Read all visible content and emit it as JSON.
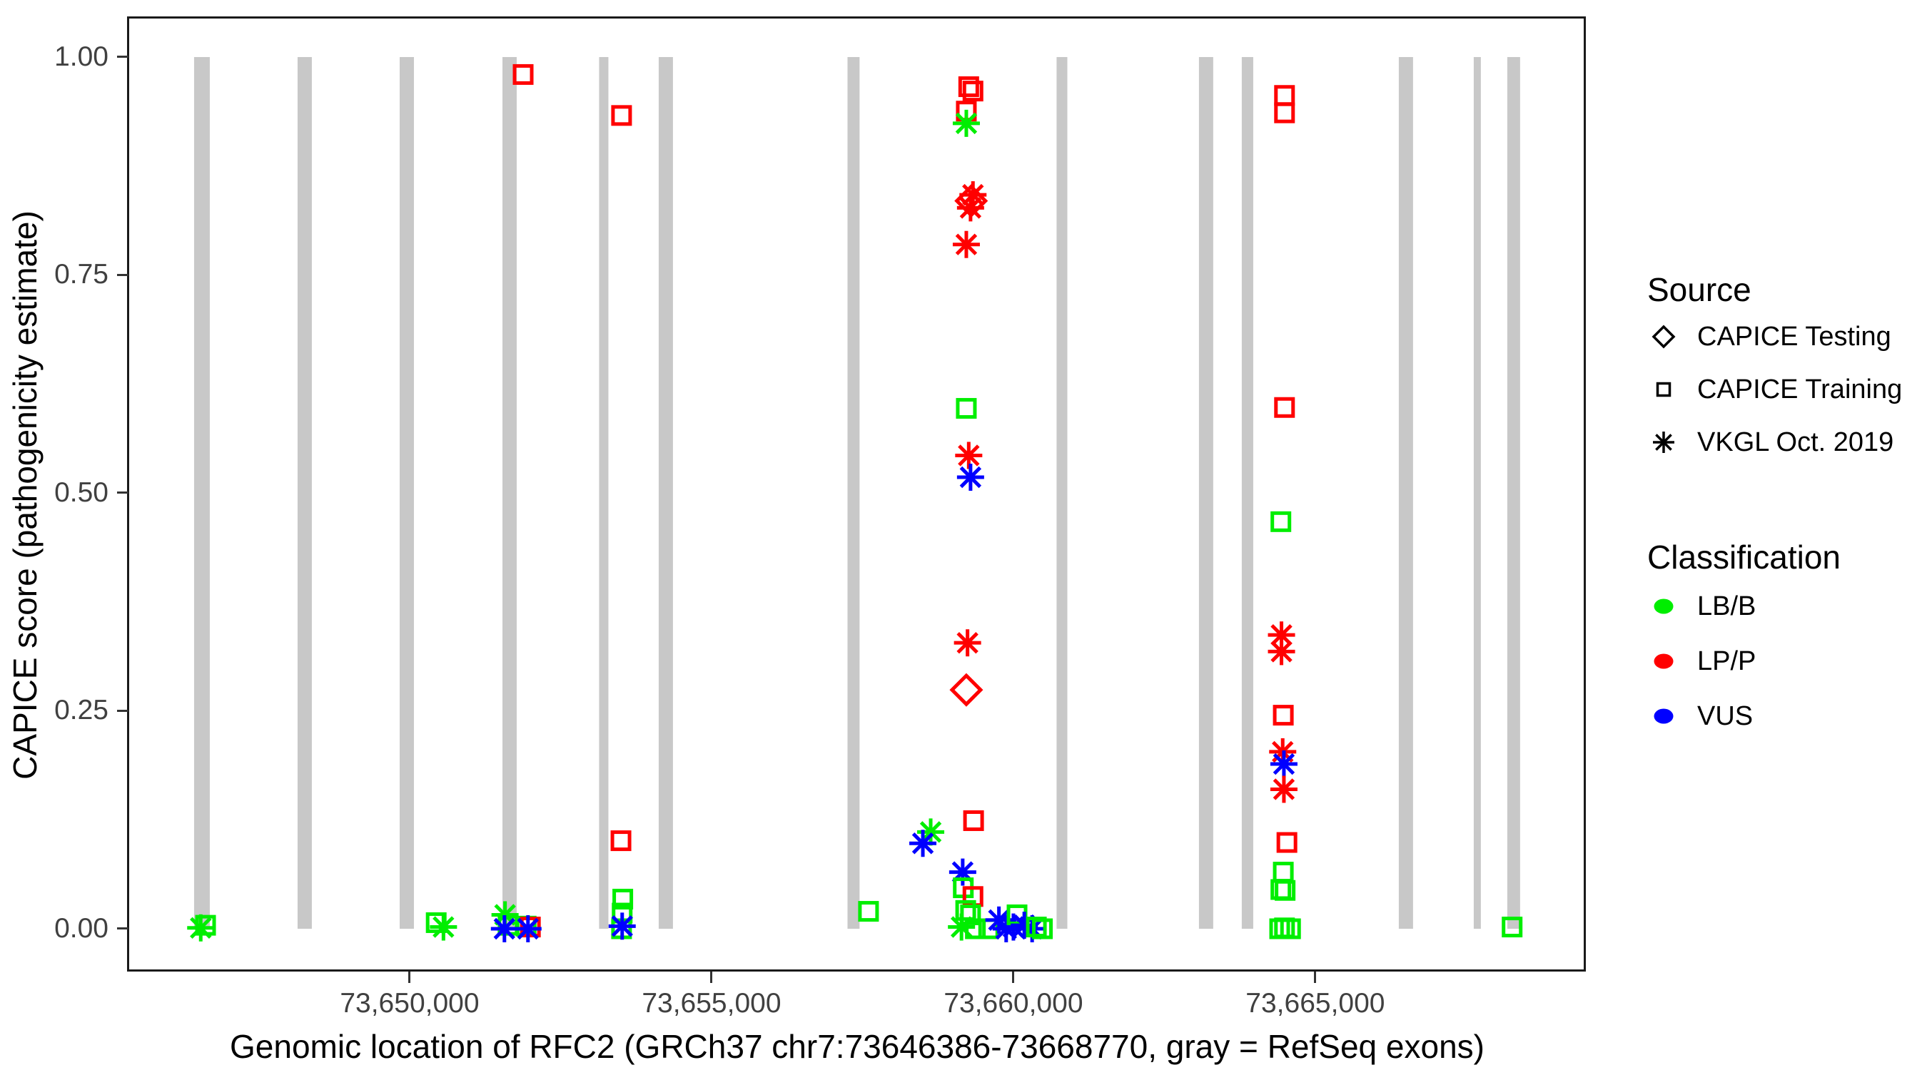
{
  "figure": {
    "x_axis_title": "Genomic location of RFC2 (GRCh37 chr7:73646386-73668770, gray = RefSeq exons)",
    "y_axis_title": "CAPICE score (pathogenicity estimate)"
  },
  "legend": {
    "source": {
      "title": "Source",
      "items": [
        {
          "shape": "diamond",
          "label": "CAPICE Testing"
        },
        {
          "shape": "square",
          "label": "CAPICE Training"
        },
        {
          "shape": "asterisk",
          "label": "VKGL Oct. 2019"
        }
      ]
    },
    "classification": {
      "title": "Classification",
      "items": [
        {
          "label": "LB/B",
          "color": "#00ee00"
        },
        {
          "label": "LP/P",
          "color": "#ff0000"
        },
        {
          "label": "VUS",
          "color": "#0000ff"
        }
      ]
    }
  },
  "colors": {
    "exon_gray": "#c8c8c8",
    "panel_border": "#1a1a1a",
    "tick_text": "#404040"
  },
  "chart_data": {
    "type": "scatter",
    "title": "",
    "xlabel": "Genomic location of RFC2 (GRCh37 chr7:73646386-73668770, gray = RefSeq exons)",
    "ylabel": "CAPICE score (pathogenicity estimate)",
    "grid": false,
    "legend_position": "right",
    "axes": {
      "x_range": [
        73645343,
        73669481
      ],
      "y_range": [
        -0.0491,
        1.045
      ],
      "x_ticks": [
        {
          "bp": 73650000,
          "label": "73,650,000"
        },
        {
          "bp": 73655000,
          "label": "73,655,000"
        },
        {
          "bp": 73660000,
          "label": "73,660,000"
        },
        {
          "bp": 73665000,
          "label": "73,665,000"
        }
      ],
      "y_ticks": [
        {
          "value": 0.0,
          "label": "0.00"
        },
        {
          "value": 0.25,
          "label": "0.25"
        },
        {
          "value": 0.5,
          "label": "0.50"
        },
        {
          "value": 0.75,
          "label": "0.75"
        },
        {
          "value": 1.0,
          "label": "1.00"
        }
      ]
    },
    "shape_by_source": {
      "CAPICE Testing": "diamond",
      "CAPICE Training": "square",
      "VKGL Oct. 2019": "asterisk"
    },
    "color_by_classification": {
      "LB/B": "#00ee00",
      "LP/P": "#ff0000",
      "VUS": "#0000ff"
    },
    "exons": [
      {
        "start": 73646430,
        "end": 73646690
      },
      {
        "start": 73648144,
        "end": 73648380
      },
      {
        "start": 73649835,
        "end": 73650071
      },
      {
        "start": 73651537,
        "end": 73651773
      },
      {
        "start": 73653138,
        "end": 73653292
      },
      {
        "start": 73654125,
        "end": 73654361
      },
      {
        "start": 73657252,
        "end": 73657452
      },
      {
        "start": 73660715,
        "end": 73660893
      },
      {
        "start": 73663073,
        "end": 73663309
      },
      {
        "start": 73663782,
        "end": 73663972
      },
      {
        "start": 73666383,
        "end": 73666619
      },
      {
        "start": 73667624,
        "end": 73667742
      },
      {
        "start": 73668180,
        "end": 73668392
      }
    ],
    "points": [
      {
        "bp": 73646540,
        "score": 0.001,
        "cls": "LB/B",
        "src": "VKGL Oct. 2019"
      },
      {
        "bp": 73646620,
        "score": 0.004,
        "cls": "LB/B",
        "src": "CAPICE Training"
      },
      {
        "bp": 73650440,
        "score": 0.007,
        "cls": "LB/B",
        "src": "CAPICE Training"
      },
      {
        "bp": 73650560,
        "score": 0.002,
        "cls": "LB/B",
        "src": "VKGL Oct. 2019"
      },
      {
        "bp": 73651880,
        "score": 0.98,
        "cls": "LP/P",
        "src": "CAPICE Training"
      },
      {
        "bp": 73651580,
        "score": 0.016,
        "cls": "LB/B",
        "src": "VKGL Oct. 2019"
      },
      {
        "bp": 73651630,
        "score": 0.004,
        "cls": "LB/B",
        "src": "CAPICE Training"
      },
      {
        "bp": 73651570,
        "score": 0.0,
        "cls": "VUS",
        "src": "VKGL Oct. 2019"
      },
      {
        "bp": 73651930,
        "score": 0.003,
        "cls": "LB/B",
        "src": "CAPICE Training"
      },
      {
        "bp": 73652000,
        "score": 0.002,
        "cls": "LP/P",
        "src": "CAPICE Training"
      },
      {
        "bp": 73651960,
        "score": 0.0,
        "cls": "VUS",
        "src": "VKGL Oct. 2019"
      },
      {
        "bp": 73653510,
        "score": 0.933,
        "cls": "LP/P",
        "src": "CAPICE Training"
      },
      {
        "bp": 73653500,
        "score": 0.101,
        "cls": "LP/P",
        "src": "CAPICE Training"
      },
      {
        "bp": 73653530,
        "score": 0.034,
        "cls": "LB/B",
        "src": "CAPICE Training"
      },
      {
        "bp": 73653520,
        "score": 0.018,
        "cls": "LB/B",
        "src": "CAPICE Training"
      },
      {
        "bp": 73653510,
        "score": 0.0,
        "cls": "LB/B",
        "src": "CAPICE Training"
      },
      {
        "bp": 73653520,
        "score": 0.003,
        "cls": "VUS",
        "src": "VKGL Oct. 2019"
      },
      {
        "bp": 73657600,
        "score": 0.02,
        "cls": "LB/B",
        "src": "CAPICE Training"
      },
      {
        "bp": 73658630,
        "score": 0.111,
        "cls": "LB/B",
        "src": "VKGL Oct. 2019"
      },
      {
        "bp": 73658500,
        "score": 0.098,
        "cls": "VUS",
        "src": "VKGL Oct. 2019"
      },
      {
        "bp": 73659260,
        "score": 0.966,
        "cls": "LP/P",
        "src": "CAPICE Training"
      },
      {
        "bp": 73659330,
        "score": 0.961,
        "cls": "LP/P",
        "src": "CAPICE Training"
      },
      {
        "bp": 73659220,
        "score": 0.938,
        "cls": "LP/P",
        "src": "CAPICE Training"
      },
      {
        "bp": 73659220,
        "score": 0.924,
        "cls": "LB/B",
        "src": "VKGL Oct. 2019"
      },
      {
        "bp": 73659330,
        "score": 0.842,
        "cls": "LP/P",
        "src": "VKGL Oct. 2019"
      },
      {
        "bp": 73659300,
        "score": 0.835,
        "cls": "LP/P",
        "src": "CAPICE Testing"
      },
      {
        "bp": 73659290,
        "score": 0.827,
        "cls": "LP/P",
        "src": "VKGL Oct. 2019"
      },
      {
        "bp": 73659220,
        "score": 0.785,
        "cls": "LP/P",
        "src": "VKGL Oct. 2019"
      },
      {
        "bp": 73659220,
        "score": 0.597,
        "cls": "LB/B",
        "src": "CAPICE Training"
      },
      {
        "bp": 73659260,
        "score": 0.543,
        "cls": "LP/P",
        "src": "VKGL Oct. 2019"
      },
      {
        "bp": 73659290,
        "score": 0.518,
        "cls": "VUS",
        "src": "VKGL Oct. 2019"
      },
      {
        "bp": 73659240,
        "score": 0.328,
        "cls": "LP/P",
        "src": "VKGL Oct. 2019"
      },
      {
        "bp": 73659220,
        "score": 0.274,
        "cls": "LP/P",
        "src": "CAPICE Testing"
      },
      {
        "bp": 73659340,
        "score": 0.124,
        "cls": "LP/P",
        "src": "CAPICE Training"
      },
      {
        "bp": 73659160,
        "score": 0.065,
        "cls": "VUS",
        "src": "VKGL Oct. 2019"
      },
      {
        "bp": 73659170,
        "score": 0.047,
        "cls": "LB/B",
        "src": "CAPICE Training"
      },
      {
        "bp": 73659330,
        "score": 0.037,
        "cls": "LP/P",
        "src": "CAPICE Training"
      },
      {
        "bp": 73659210,
        "score": 0.021,
        "cls": "LB/B",
        "src": "CAPICE Training"
      },
      {
        "bp": 73659290,
        "score": 0.016,
        "cls": "LB/B",
        "src": "CAPICE Training"
      },
      {
        "bp": 73659140,
        "score": 0.002,
        "cls": "LB/B",
        "src": "VKGL Oct. 2019"
      },
      {
        "bp": 73659370,
        "score": 0.0,
        "cls": "LB/B",
        "src": "CAPICE Training"
      },
      {
        "bp": 73659590,
        "score": 0.0,
        "cls": "LB/B",
        "src": "CAPICE Training"
      },
      {
        "bp": 73659760,
        "score": 0.01,
        "cls": "VUS",
        "src": "VKGL Oct. 2019"
      },
      {
        "bp": 73659880,
        "score": 0.0,
        "cls": "VUS",
        "src": "VKGL Oct. 2019"
      },
      {
        "bp": 73660000,
        "score": 0.002,
        "cls": "VUS",
        "src": "VKGL Oct. 2019"
      },
      {
        "bp": 73660060,
        "score": 0.016,
        "cls": "LB/B",
        "src": "CAPICE Training"
      },
      {
        "bp": 73660180,
        "score": 0.004,
        "cls": "VUS",
        "src": "VKGL Oct. 2019"
      },
      {
        "bp": 73660310,
        "score": 0.0,
        "cls": "VUS",
        "src": "VKGL Oct. 2019"
      },
      {
        "bp": 73660380,
        "score": 0.002,
        "cls": "LB/B",
        "src": "CAPICE Training"
      },
      {
        "bp": 73660480,
        "score": 0.0,
        "cls": "LB/B",
        "src": "CAPICE Training"
      },
      {
        "bp": 73664490,
        "score": 0.956,
        "cls": "LP/P",
        "src": "CAPICE Training"
      },
      {
        "bp": 73664490,
        "score": 0.936,
        "cls": "LP/P",
        "src": "CAPICE Training"
      },
      {
        "bp": 73664490,
        "score": 0.598,
        "cls": "LP/P",
        "src": "CAPICE Training"
      },
      {
        "bp": 73664430,
        "score": 0.467,
        "cls": "LB/B",
        "src": "CAPICE Training"
      },
      {
        "bp": 73664440,
        "score": 0.337,
        "cls": "LP/P",
        "src": "VKGL Oct. 2019"
      },
      {
        "bp": 73664440,
        "score": 0.318,
        "cls": "LP/P",
        "src": "VKGL Oct. 2019"
      },
      {
        "bp": 73664470,
        "score": 0.245,
        "cls": "LP/P",
        "src": "CAPICE Training"
      },
      {
        "bp": 73664460,
        "score": 0.203,
        "cls": "LP/P",
        "src": "VKGL Oct. 2019"
      },
      {
        "bp": 73664480,
        "score": 0.189,
        "cls": "VUS",
        "src": "VKGL Oct. 2019"
      },
      {
        "bp": 73664480,
        "score": 0.16,
        "cls": "LP/P",
        "src": "VKGL Oct. 2019"
      },
      {
        "bp": 73664530,
        "score": 0.099,
        "cls": "LP/P",
        "src": "CAPICE Training"
      },
      {
        "bp": 73664470,
        "score": 0.065,
        "cls": "LB/B",
        "src": "CAPICE Training"
      },
      {
        "bp": 73664430,
        "score": 0.045,
        "cls": "LB/B",
        "src": "CAPICE Training"
      },
      {
        "bp": 73664500,
        "score": 0.044,
        "cls": "LB/B",
        "src": "CAPICE Training"
      },
      {
        "bp": 73664410,
        "score": 0.0,
        "cls": "LB/B",
        "src": "CAPICE Training"
      },
      {
        "bp": 73664490,
        "score": 0.001,
        "cls": "LB/B",
        "src": "CAPICE Training"
      },
      {
        "bp": 73664590,
        "score": 0.0,
        "cls": "LB/B",
        "src": "CAPICE Training"
      },
      {
        "bp": 73668260,
        "score": 0.002,
        "cls": "LB/B",
        "src": "CAPICE Training"
      }
    ]
  }
}
